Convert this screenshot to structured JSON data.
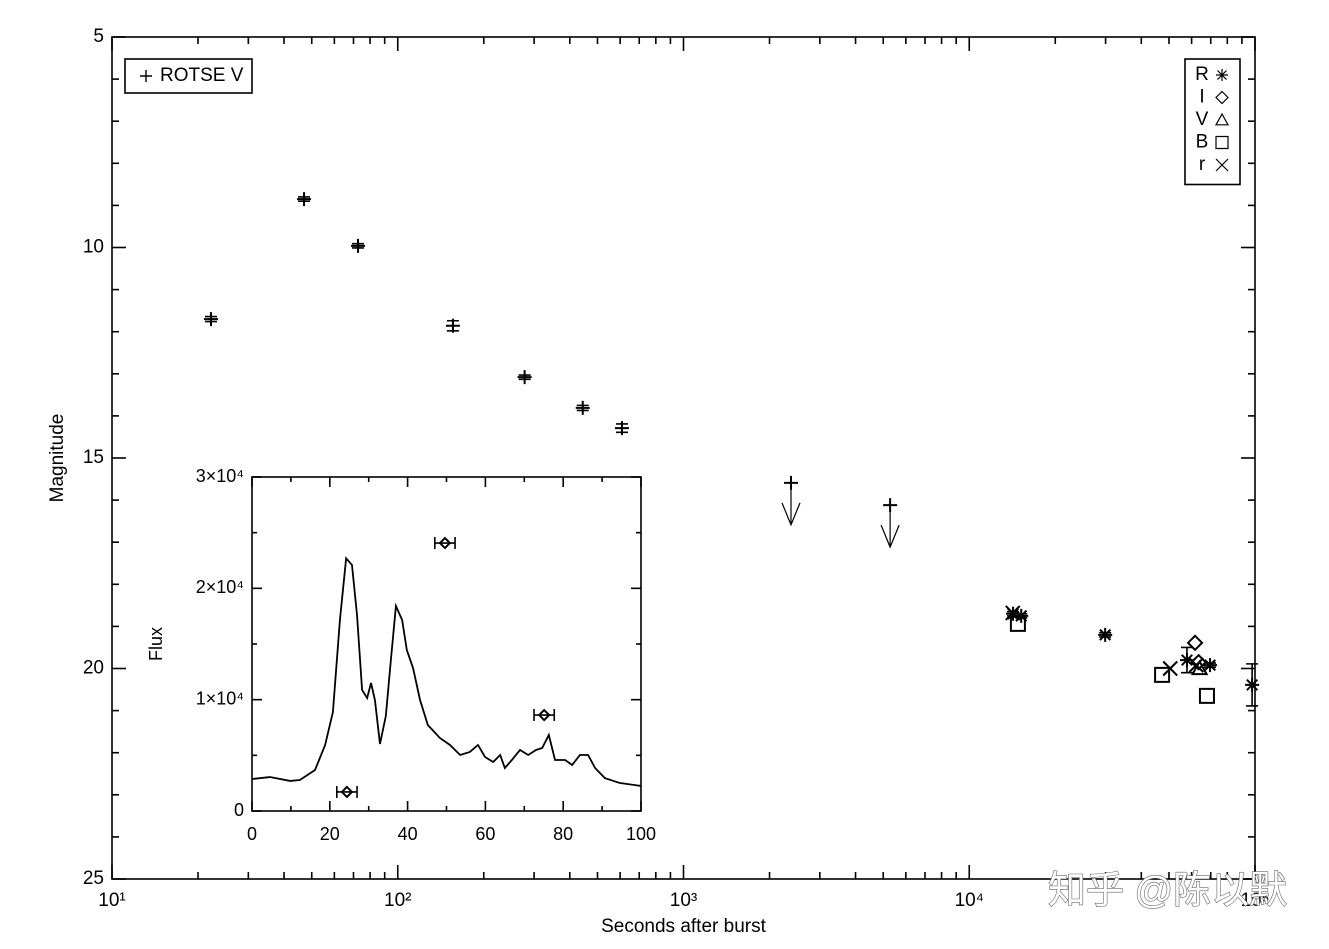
{
  "chart_data": [
    {
      "type": "scatter",
      "xlabel": "Seconds after burst",
      "ylabel": "Magnitude",
      "xlog": true,
      "xlim": [
        10,
        100000
      ],
      "xticks": [
        {
          "value": 10,
          "label": "10¹"
        },
        {
          "value": 100,
          "label": "10²"
        },
        {
          "value": 1000,
          "label": "10³"
        },
        {
          "value": 10000,
          "label": "10⁴"
        },
        {
          "value": 100000,
          "label": "10⁵"
        }
      ],
      "ylim": [
        5,
        25
      ],
      "y_reversed": true,
      "yticks": [
        5,
        10,
        15,
        20,
        25
      ],
      "color": "#000000",
      "series": [
        {
          "name": "ROTSE V",
          "marker": "plus",
          "legend": "top-left",
          "x": [
            22.2,
            47.0,
            72.6,
            156,
            278,
            444,
            609,
            2378,
            5285
          ],
          "values": [
            11.7,
            8.85,
            9.96,
            11.86,
            13.08,
            13.81,
            14.29,
            15.59,
            16.12
          ],
          "errors": [
            0.06,
            0.05,
            0.05,
            0.12,
            0.05,
            0.06,
            0.1,
            null,
            null
          ],
          "upper_limit": [
            false,
            false,
            false,
            false,
            false,
            false,
            false,
            true,
            true
          ]
        },
        {
          "name": "R",
          "marker": "asterisk",
          "legend": "top-right",
          "x": [
            14230,
            15200,
            29900,
            57800,
            69600,
            97700
          ],
          "values": [
            18.7,
            18.75,
            19.2,
            19.8,
            19.92,
            20.39
          ],
          "errors": [
            0.05,
            0.05,
            0.05,
            0.3,
            0.05,
            0.5
          ]
        },
        {
          "name": "I",
          "marker": "diamond",
          "legend": "top-right",
          "x": [
            61700,
            63500
          ],
          "values": [
            19.39,
            19.85
          ]
        },
        {
          "name": "V",
          "marker": "triangle",
          "legend": "top-right",
          "x": [
            64000
          ],
          "values": [
            20.0
          ]
        },
        {
          "name": "B",
          "marker": "square",
          "legend": "top-right",
          "x": [
            14800,
            47300,
            67900
          ],
          "values": [
            18.94,
            20.15,
            20.65
          ]
        },
        {
          "name": "r",
          "marker": "cross",
          "legend": "top-right",
          "x": [
            14200,
            50500,
            62300
          ],
          "values": [
            18.68,
            20.0,
            19.92
          ]
        }
      ]
    },
    {
      "type": "line",
      "ylabel": "Flux",
      "xlim": [
        0,
        100
      ],
      "xticks": [
        0,
        20,
        40,
        60,
        80,
        100
      ],
      "ylim": [
        0,
        30000
      ],
      "yticks": [
        0,
        {
          "value": 10000,
          "label": "1×10⁴"
        },
        {
          "value": 20000,
          "label": "2×10⁴"
        },
        {
          "value": 30000,
          "label": "3×10⁴"
        }
      ],
      "color": "#000000",
      "series": [
        {
          "type": "line",
          "x": [
            0,
            4.6,
            9.8,
            12.3,
            16.2,
            18.8,
            20.8,
            22.6,
            24.2,
            25.7,
            27.0,
            28.3,
            29.6,
            30.6,
            31.6,
            32.9,
            34.4,
            35.7,
            37.0,
            38.6,
            39.8,
            41.4,
            43.2,
            45.2,
            48.3,
            50.9,
            53.5,
            56.0,
            58.1,
            59.9,
            62.0,
            63.8,
            65.0,
            66.8,
            68.9,
            71.0,
            73.0,
            74.6,
            76.3,
            77.9,
            80.5,
            82.3,
            84.3,
            86.4,
            88.2,
            90.7,
            94.6,
            100
          ],
          "values": [
            2870,
            3050,
            2700,
            2780,
            3680,
            5930,
            8890,
            17150,
            22700,
            22100,
            17600,
            10870,
            10150,
            11500,
            9970,
            6020,
            8530,
            13560,
            18410,
            17150,
            14460,
            12840,
            9970,
            7720,
            6560,
            5930,
            5030,
            5300,
            5930,
            4850,
            4400,
            5030,
            3860,
            4580,
            5480,
            5030,
            5480,
            5660,
            6830,
            4580,
            4580,
            4130,
            5030,
            5030,
            3860,
            2960,
            2510,
            2250
          ]
        },
        {
          "type": "scatter",
          "marker": "diamond",
          "x": [
            24.4,
            49.6,
            75.1
          ],
          "xerr": [
            2.6,
            2.6,
            2.6
          ],
          "values": [
            1710,
            24070,
            8620
          ]
        }
      ]
    }
  ],
  "watermark": "知乎 @陈以默"
}
